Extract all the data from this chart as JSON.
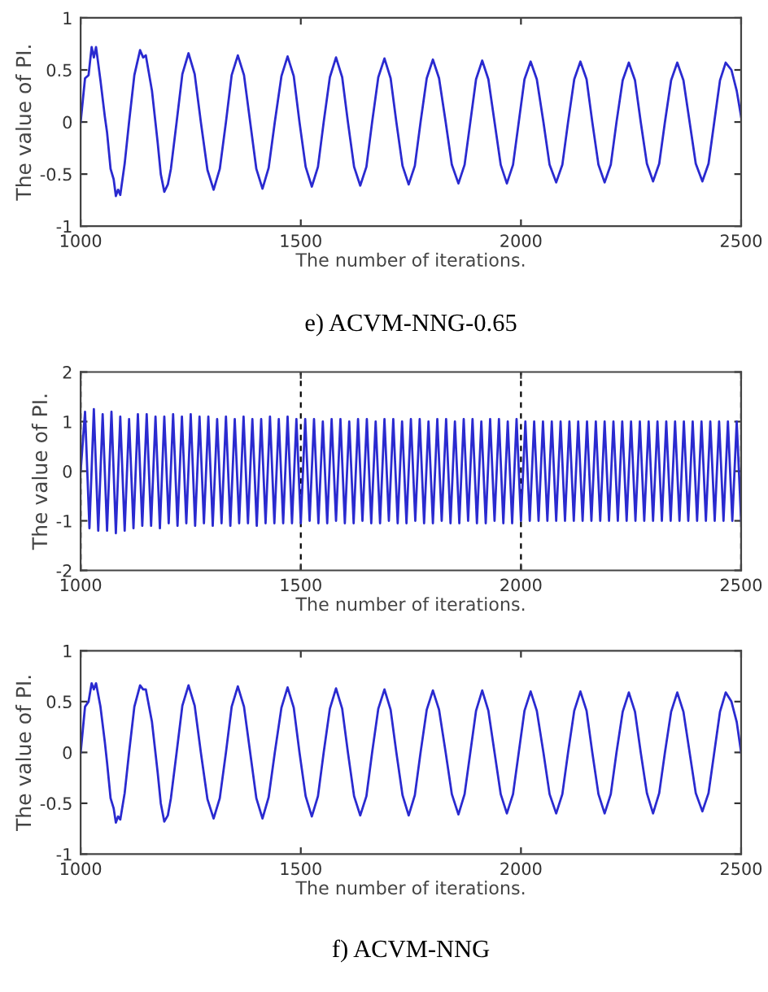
{
  "chart_data": [
    {
      "type": "line",
      "xlabel": "The number of iterations.",
      "ylabel": "The value of PI.",
      "annotations": [
        "e) ACVM-NNG-0.65"
      ],
      "xlim": [
        1000,
        2500
      ],
      "ylim": [
        -1,
        1
      ],
      "xticks": [
        1000,
        1500,
        2000,
        2500
      ],
      "yticks": [
        -1,
        -0.5,
        0,
        0.5,
        1
      ],
      "grid": false,
      "series": [
        {
          "color": "#2a2ad0",
          "x": [
            1000,
            1010,
            1018,
            1025,
            1030,
            1035,
            1045,
            1055,
            1060,
            1068,
            1075,
            1080,
            1085,
            1090,
            1100,
            1110,
            1122,
            1135,
            1142,
            1148,
            1162,
            1175,
            1182,
            1190,
            1198,
            1205,
            1218,
            1231,
            1245,
            1259,
            1273,
            1288,
            1302,
            1316,
            1330,
            1343,
            1357,
            1371,
            1385,
            1399,
            1413,
            1427,
            1441,
            1456,
            1470,
            1484,
            1497,
            1511,
            1525,
            1539,
            1552,
            1566,
            1580,
            1594,
            1607,
            1621,
            1635,
            1649,
            1662,
            1676,
            1690,
            1704,
            1717,
            1731,
            1745,
            1759,
            1772,
            1786,
            1800,
            1814,
            1829,
            1843,
            1858,
            1872,
            1885,
            1898,
            1912,
            1926,
            1940,
            1954,
            1968,
            1982,
            1995,
            2008,
            2022,
            2036,
            2051,
            2065,
            2080,
            2094,
            2107,
            2121,
            2135,
            2149,
            2162,
            2176,
            2190,
            2204,
            2217,
            2231,
            2245,
            2259,
            2272,
            2286,
            2300,
            2314,
            2327,
            2341,
            2355,
            2369,
            2383,
            2397,
            2412,
            2426,
            2439,
            2452,
            2465,
            2478,
            2490,
            2500
          ],
          "values": [
            0,
            0.42,
            0.45,
            0.72,
            0.62,
            0.72,
            0.4,
            0.05,
            -0.1,
            -0.45,
            -0.55,
            -0.71,
            -0.65,
            -0.7,
            -0.4,
            0,
            0.45,
            0.69,
            0.62,
            0.64,
            0.3,
            -0.2,
            -0.5,
            -0.67,
            -0.6,
            -0.45,
            0,
            0.46,
            0.66,
            0.46,
            0,
            -0.46,
            -0.65,
            -0.45,
            0,
            0.45,
            0.64,
            0.45,
            0,
            -0.45,
            -0.64,
            -0.44,
            0,
            0.44,
            0.63,
            0.44,
            0,
            -0.43,
            -0.62,
            -0.43,
            0,
            0.43,
            0.62,
            0.43,
            0,
            -0.43,
            -0.61,
            -0.43,
            0,
            0.43,
            0.61,
            0.42,
            0,
            -0.42,
            -0.6,
            -0.42,
            0,
            0.42,
            0.6,
            0.42,
            0,
            -0.41,
            -0.59,
            -0.41,
            0,
            0.41,
            0.59,
            0.41,
            0,
            -0.41,
            -0.59,
            -0.41,
            0,
            0.41,
            0.58,
            0.41,
            0,
            -0.41,
            -0.58,
            -0.41,
            0,
            0.41,
            0.58,
            0.41,
            0,
            -0.41,
            -0.58,
            -0.41,
            0,
            0.4,
            0.57,
            0.4,
            0,
            -0.4,
            -0.57,
            -0.4,
            0,
            0.4,
            0.57,
            0.4,
            0,
            -0.4,
            -0.57,
            -0.4,
            0,
            0.4,
            0.57,
            0.5,
            0.3,
            0.05
          ]
        }
      ]
    },
    {
      "type": "line",
      "xlabel": "The number of iterations.",
      "ylabel": "The value of PI.",
      "xlim": [
        1000,
        2500
      ],
      "ylim": [
        -2,
        2
      ],
      "xticks": [
        1000,
        1500,
        2000,
        2500
      ],
      "yticks": [
        -2,
        -1,
        0,
        1,
        2
      ],
      "grid": "x",
      "series": [
        {
          "color": "#2a2ad0",
          "x": [
            1000,
            1010,
            1020,
            1030,
            1040,
            1050,
            1060,
            1070,
            1080,
            1090,
            1100,
            1110,
            1120,
            1130,
            1140,
            1150,
            1160,
            1170,
            1180,
            1190,
            1200,
            1210,
            1220,
            1230,
            1240,
            1250,
            1260,
            1270,
            1280,
            1290,
            1300,
            1310,
            1320,
            1330,
            1340,
            1350,
            1360,
            1370,
            1380,
            1390,
            1400,
            1410,
            1420,
            1430,
            1440,
            1450,
            1460,
            1470,
            1480,
            1490,
            1500,
            1510,
            1520,
            1530,
            1540,
            1550,
            1560,
            1570,
            1580,
            1590,
            1600,
            1610,
            1620,
            1630,
            1640,
            1650,
            1660,
            1670,
            1680,
            1690,
            1700,
            1710,
            1720,
            1730,
            1740,
            1750,
            1760,
            1770,
            1780,
            1790,
            1800,
            1810,
            1820,
            1830,
            1840,
            1850,
            1860,
            1870,
            1880,
            1890,
            1900,
            1910,
            1920,
            1930,
            1940,
            1950,
            1960,
            1970,
            1980,
            1990,
            2000,
            2010,
            2020,
            2030,
            2040,
            2050,
            2060,
            2070,
            2080,
            2090,
            2100,
            2110,
            2120,
            2130,
            2140,
            2150,
            2160,
            2170,
            2180,
            2190,
            2200,
            2210,
            2220,
            2230,
            2240,
            2250,
            2260,
            2270,
            2280,
            2290,
            2300,
            2310,
            2320,
            2330,
            2340,
            2350,
            2360,
            2370,
            2380,
            2390,
            2400,
            2410,
            2420,
            2430,
            2440,
            2450,
            2460,
            2470,
            2480,
            2490,
            2500
          ],
          "values": [
            0,
            1.2,
            -1.15,
            1.25,
            -1.2,
            1.15,
            -1.2,
            1.2,
            -1.25,
            1.1,
            -1.2,
            1.05,
            -1.15,
            1.15,
            -1.1,
            1.15,
            -1.1,
            1.1,
            -1.15,
            1.1,
            -1.05,
            1.15,
            -1.1,
            1.1,
            -1.05,
            1.15,
            -1.1,
            1.1,
            -1.05,
            1.1,
            -1.1,
            1.05,
            -1.05,
            1.1,
            -1.1,
            1.05,
            -1.05,
            1.1,
            -1.05,
            1.05,
            -1.1,
            1.05,
            -1.05,
            1.1,
            -1.05,
            1.05,
            -1.05,
            1.1,
            -1.05,
            1.05,
            -1.05,
            1.05,
            -1.0,
            1.05,
            -1.05,
            1.0,
            -1.05,
            1.05,
            -1.0,
            1.05,
            -1.05,
            1.0,
            -1.05,
            1.05,
            -1.0,
            1.05,
            -1.05,
            1.0,
            -1.05,
            1.05,
            -1.0,
            1.05,
            -1.05,
            1.0,
            -1.05,
            1.05,
            -1.0,
            1.05,
            -1.05,
            1.0,
            -1.05,
            1.05,
            -1.0,
            1.05,
            -1.05,
            1.0,
            -1.05,
            1.05,
            -1.0,
            1.05,
            -1.05,
            1.0,
            -1.05,
            1.05,
            -1.0,
            1.05,
            -1.05,
            1.0,
            -1.05,
            1.05,
            -1.0,
            1.0,
            -1.0,
            1.0,
            -1.0,
            1.0,
            -1.0,
            1.0,
            -1.0,
            1.0,
            -1.0,
            1.0,
            -1.0,
            1.0,
            -1.0,
            1.0,
            -1.0,
            1.0,
            -1.0,
            1.0,
            -1.0,
            1.0,
            -1.0,
            1.0,
            -1.0,
            1.0,
            -1.0,
            1.0,
            -1.0,
            1.0,
            -1.0,
            1.0,
            -1.0,
            1.0,
            -1.0,
            1.0,
            -1.0,
            1.0,
            -1.0,
            1.0,
            -1.0,
            1.0,
            -1.0,
            1.0,
            -1.0,
            1.0,
            -1.0,
            1.0,
            -1.0,
            1.0,
            -1.0
          ]
        }
      ]
    },
    {
      "type": "line",
      "xlabel": "The number of iterations.",
      "ylabel": "The value of PI.",
      "annotations": [
        "f) ACVM-NNG"
      ],
      "xlim": [
        1000,
        2500
      ],
      "ylim": [
        -1,
        1
      ],
      "xticks": [
        1000,
        1500,
        2000,
        2500
      ],
      "yticks": [
        -1,
        -0.5,
        0,
        0.5,
        1
      ],
      "grid": false,
      "series": [
        {
          "color": "#2a2ad0",
          "x": [
            1000,
            1010,
            1018,
            1025,
            1030,
            1035,
            1045,
            1055,
            1060,
            1068,
            1075,
            1080,
            1085,
            1090,
            1100,
            1110,
            1122,
            1135,
            1142,
            1148,
            1162,
            1175,
            1182,
            1190,
            1198,
            1205,
            1218,
            1231,
            1245,
            1259,
            1273,
            1288,
            1302,
            1316,
            1330,
            1343,
            1357,
            1371,
            1385,
            1399,
            1413,
            1427,
            1441,
            1456,
            1470,
            1484,
            1497,
            1511,
            1525,
            1539,
            1552,
            1566,
            1580,
            1594,
            1607,
            1621,
            1635,
            1649,
            1662,
            1676,
            1690,
            1704,
            1717,
            1731,
            1745,
            1759,
            1772,
            1786,
            1800,
            1814,
            1829,
            1843,
            1858,
            1872,
            1885,
            1898,
            1912,
            1926,
            1940,
            1954,
            1968,
            1982,
            1995,
            2008,
            2022,
            2036,
            2051,
            2065,
            2080,
            2094,
            2107,
            2121,
            2135,
            2149,
            2162,
            2176,
            2190,
            2204,
            2217,
            2231,
            2245,
            2259,
            2272,
            2286,
            2300,
            2314,
            2327,
            2341,
            2355,
            2369,
            2383,
            2397,
            2412,
            2426,
            2439,
            2452,
            2465,
            2478,
            2490,
            2500
          ],
          "values": [
            0,
            0.45,
            0.5,
            0.68,
            0.62,
            0.68,
            0.45,
            0.1,
            -0.1,
            -0.45,
            -0.55,
            -0.69,
            -0.63,
            -0.66,
            -0.4,
            0,
            0.45,
            0.66,
            0.62,
            0.62,
            0.3,
            -0.2,
            -0.5,
            -0.68,
            -0.62,
            -0.45,
            0,
            0.46,
            0.66,
            0.46,
            0,
            -0.46,
            -0.65,
            -0.45,
            0,
            0.45,
            0.65,
            0.45,
            0,
            -0.45,
            -0.65,
            -0.44,
            0,
            0.44,
            0.64,
            0.44,
            0,
            -0.43,
            -0.63,
            -0.43,
            0,
            0.43,
            0.63,
            0.43,
            0,
            -0.43,
            -0.62,
            -0.43,
            0,
            0.43,
            0.62,
            0.42,
            0,
            -0.42,
            -0.62,
            -0.42,
            0,
            0.42,
            0.61,
            0.42,
            0,
            -0.41,
            -0.61,
            -0.41,
            0,
            0.41,
            0.61,
            0.41,
            0,
            -0.41,
            -0.6,
            -0.41,
            0,
            0.41,
            0.6,
            0.41,
            0,
            -0.41,
            -0.6,
            -0.41,
            0,
            0.41,
            0.6,
            0.41,
            0,
            -0.41,
            -0.6,
            -0.41,
            0,
            0.4,
            0.59,
            0.4,
            0,
            -0.4,
            -0.6,
            -0.4,
            0,
            0.4,
            0.59,
            0.4,
            0,
            -0.4,
            -0.58,
            -0.4,
            0,
            0.4,
            0.59,
            0.5,
            0.3,
            0.0
          ]
        }
      ]
    }
  ]
}
